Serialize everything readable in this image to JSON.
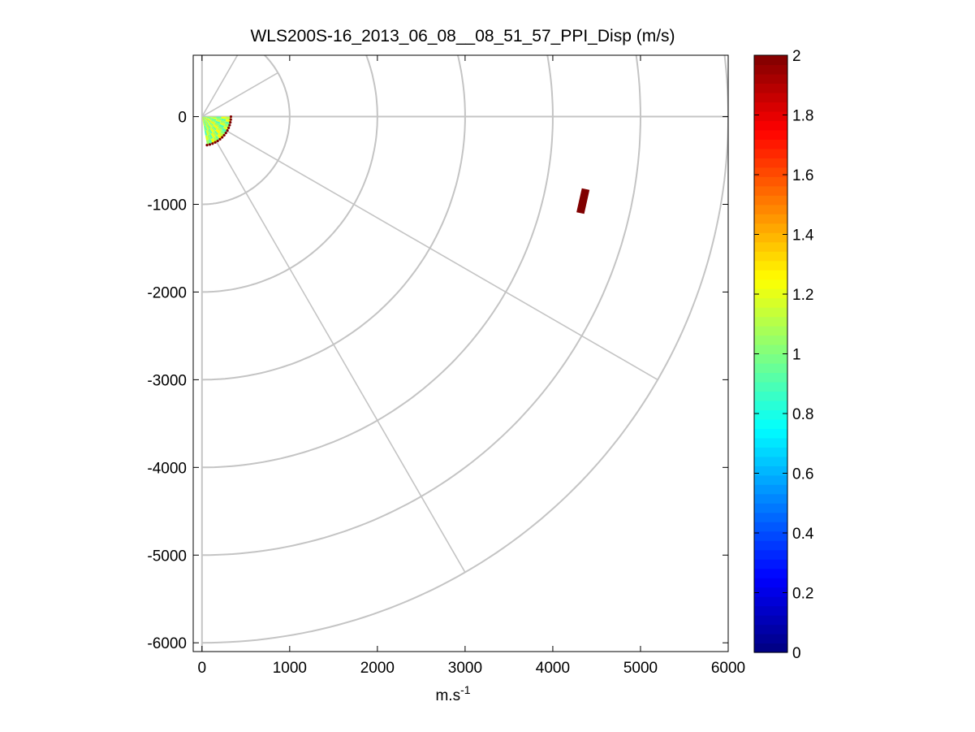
{
  "chart_data": {
    "type": "polar-ppi",
    "title": "WLS200S-16_2013_06_08__08_51_57_PPI_Disp (m/s)",
    "xlabel_base": "m.s",
    "xlabel_exp": "-1",
    "ylabel": "",
    "xlim": [
      -100,
      6000
    ],
    "ylim": [
      -6100,
      700
    ],
    "xticks": [
      0,
      1000,
      2000,
      3000,
      4000,
      5000,
      6000
    ],
    "xtick_labels": [
      "0",
      "1000",
      "2000",
      "3000",
      "4000",
      "5000",
      "6000"
    ],
    "yticks": [
      0,
      -1000,
      -2000,
      -3000,
      -4000,
      -5000,
      -6000
    ],
    "ytick_labels": [
      "0",
      "-1000",
      "-2000",
      "-3000",
      "-4000",
      "-5000",
      "-6000"
    ],
    "range_rings": [
      1000,
      2000,
      3000,
      4000,
      5000,
      6000
    ],
    "radial_lines_deg": [
      0,
      -30,
      -60,
      30,
      60,
      90
    ],
    "radial_line_ranges": [
      6000,
      6000,
      6000,
      1000,
      1000,
      1000
    ],
    "scan": {
      "max_range": 330,
      "start_azimuth_deg": 0,
      "end_azimuth_deg": -80,
      "value_range": [
        0.9,
        1.3
      ],
      "edge_marker_value": 2.0
    },
    "isolated_cell": {
      "range": 4450,
      "azimuth_deg": -12.5,
      "length": 280,
      "width": 90,
      "value": 2.0
    },
    "colorbar": {
      "min": 0,
      "max": 2,
      "ticks": [
        0,
        0.2,
        0.4,
        0.6,
        0.8,
        1,
        1.2,
        1.4,
        1.6,
        1.8,
        2
      ],
      "tick_labels": [
        "0",
        "0.2",
        "0.4",
        "0.6",
        "0.8",
        "1",
        "1.2",
        "1.4",
        "1.6",
        "1.8",
        "2"
      ],
      "colormap": "jet",
      "levels": 64
    }
  }
}
